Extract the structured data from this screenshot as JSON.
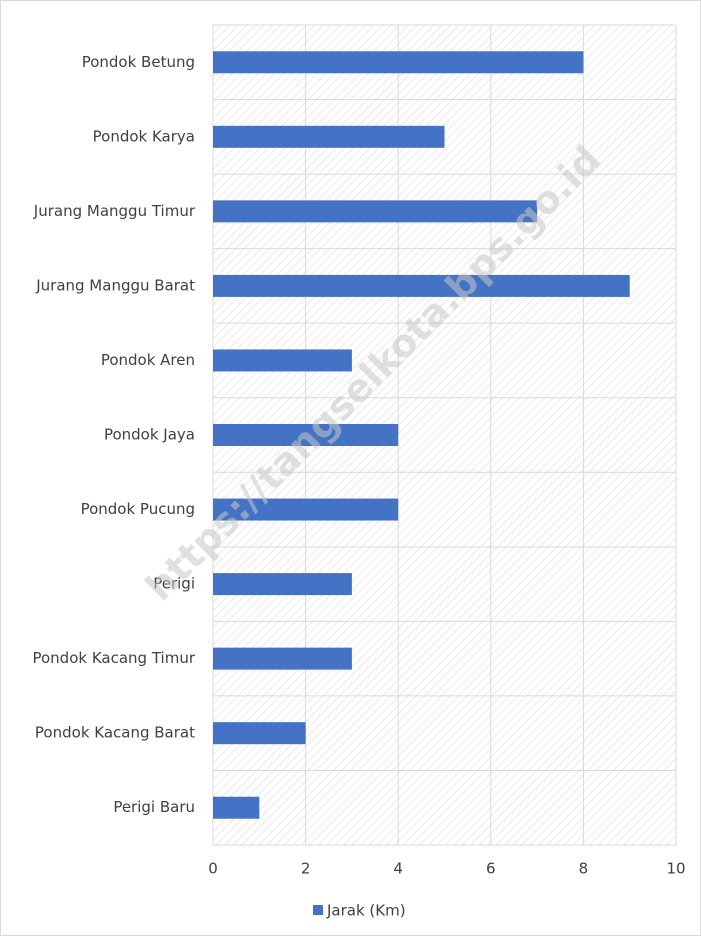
{
  "chart_data": {
    "type": "bar",
    "orientation": "horizontal",
    "categories": [
      "Pondok Betung",
      "Pondok Karya",
      "Jurang Manggu Timur",
      "Jurang Manggu Barat",
      "Pondok Aren",
      "Pondok Jaya",
      "Pondok Pucung",
      "Perigi",
      "Pondok Kacang Timur",
      "Pondok Kacang Barat",
      "Perigi Baru"
    ],
    "series": [
      {
        "name": "Jarak (Km)",
        "color": "#4472c4",
        "values": [
          8,
          5,
          7,
          9,
          3,
          4,
          4,
          3,
          3,
          2,
          1
        ]
      }
    ],
    "xlim": [
      0,
      10
    ],
    "xticks": [
      0,
      2,
      4,
      6,
      8,
      10
    ],
    "grid": true,
    "legend": "bottom",
    "watermark": "https://tangselkota.bps.go.id"
  }
}
